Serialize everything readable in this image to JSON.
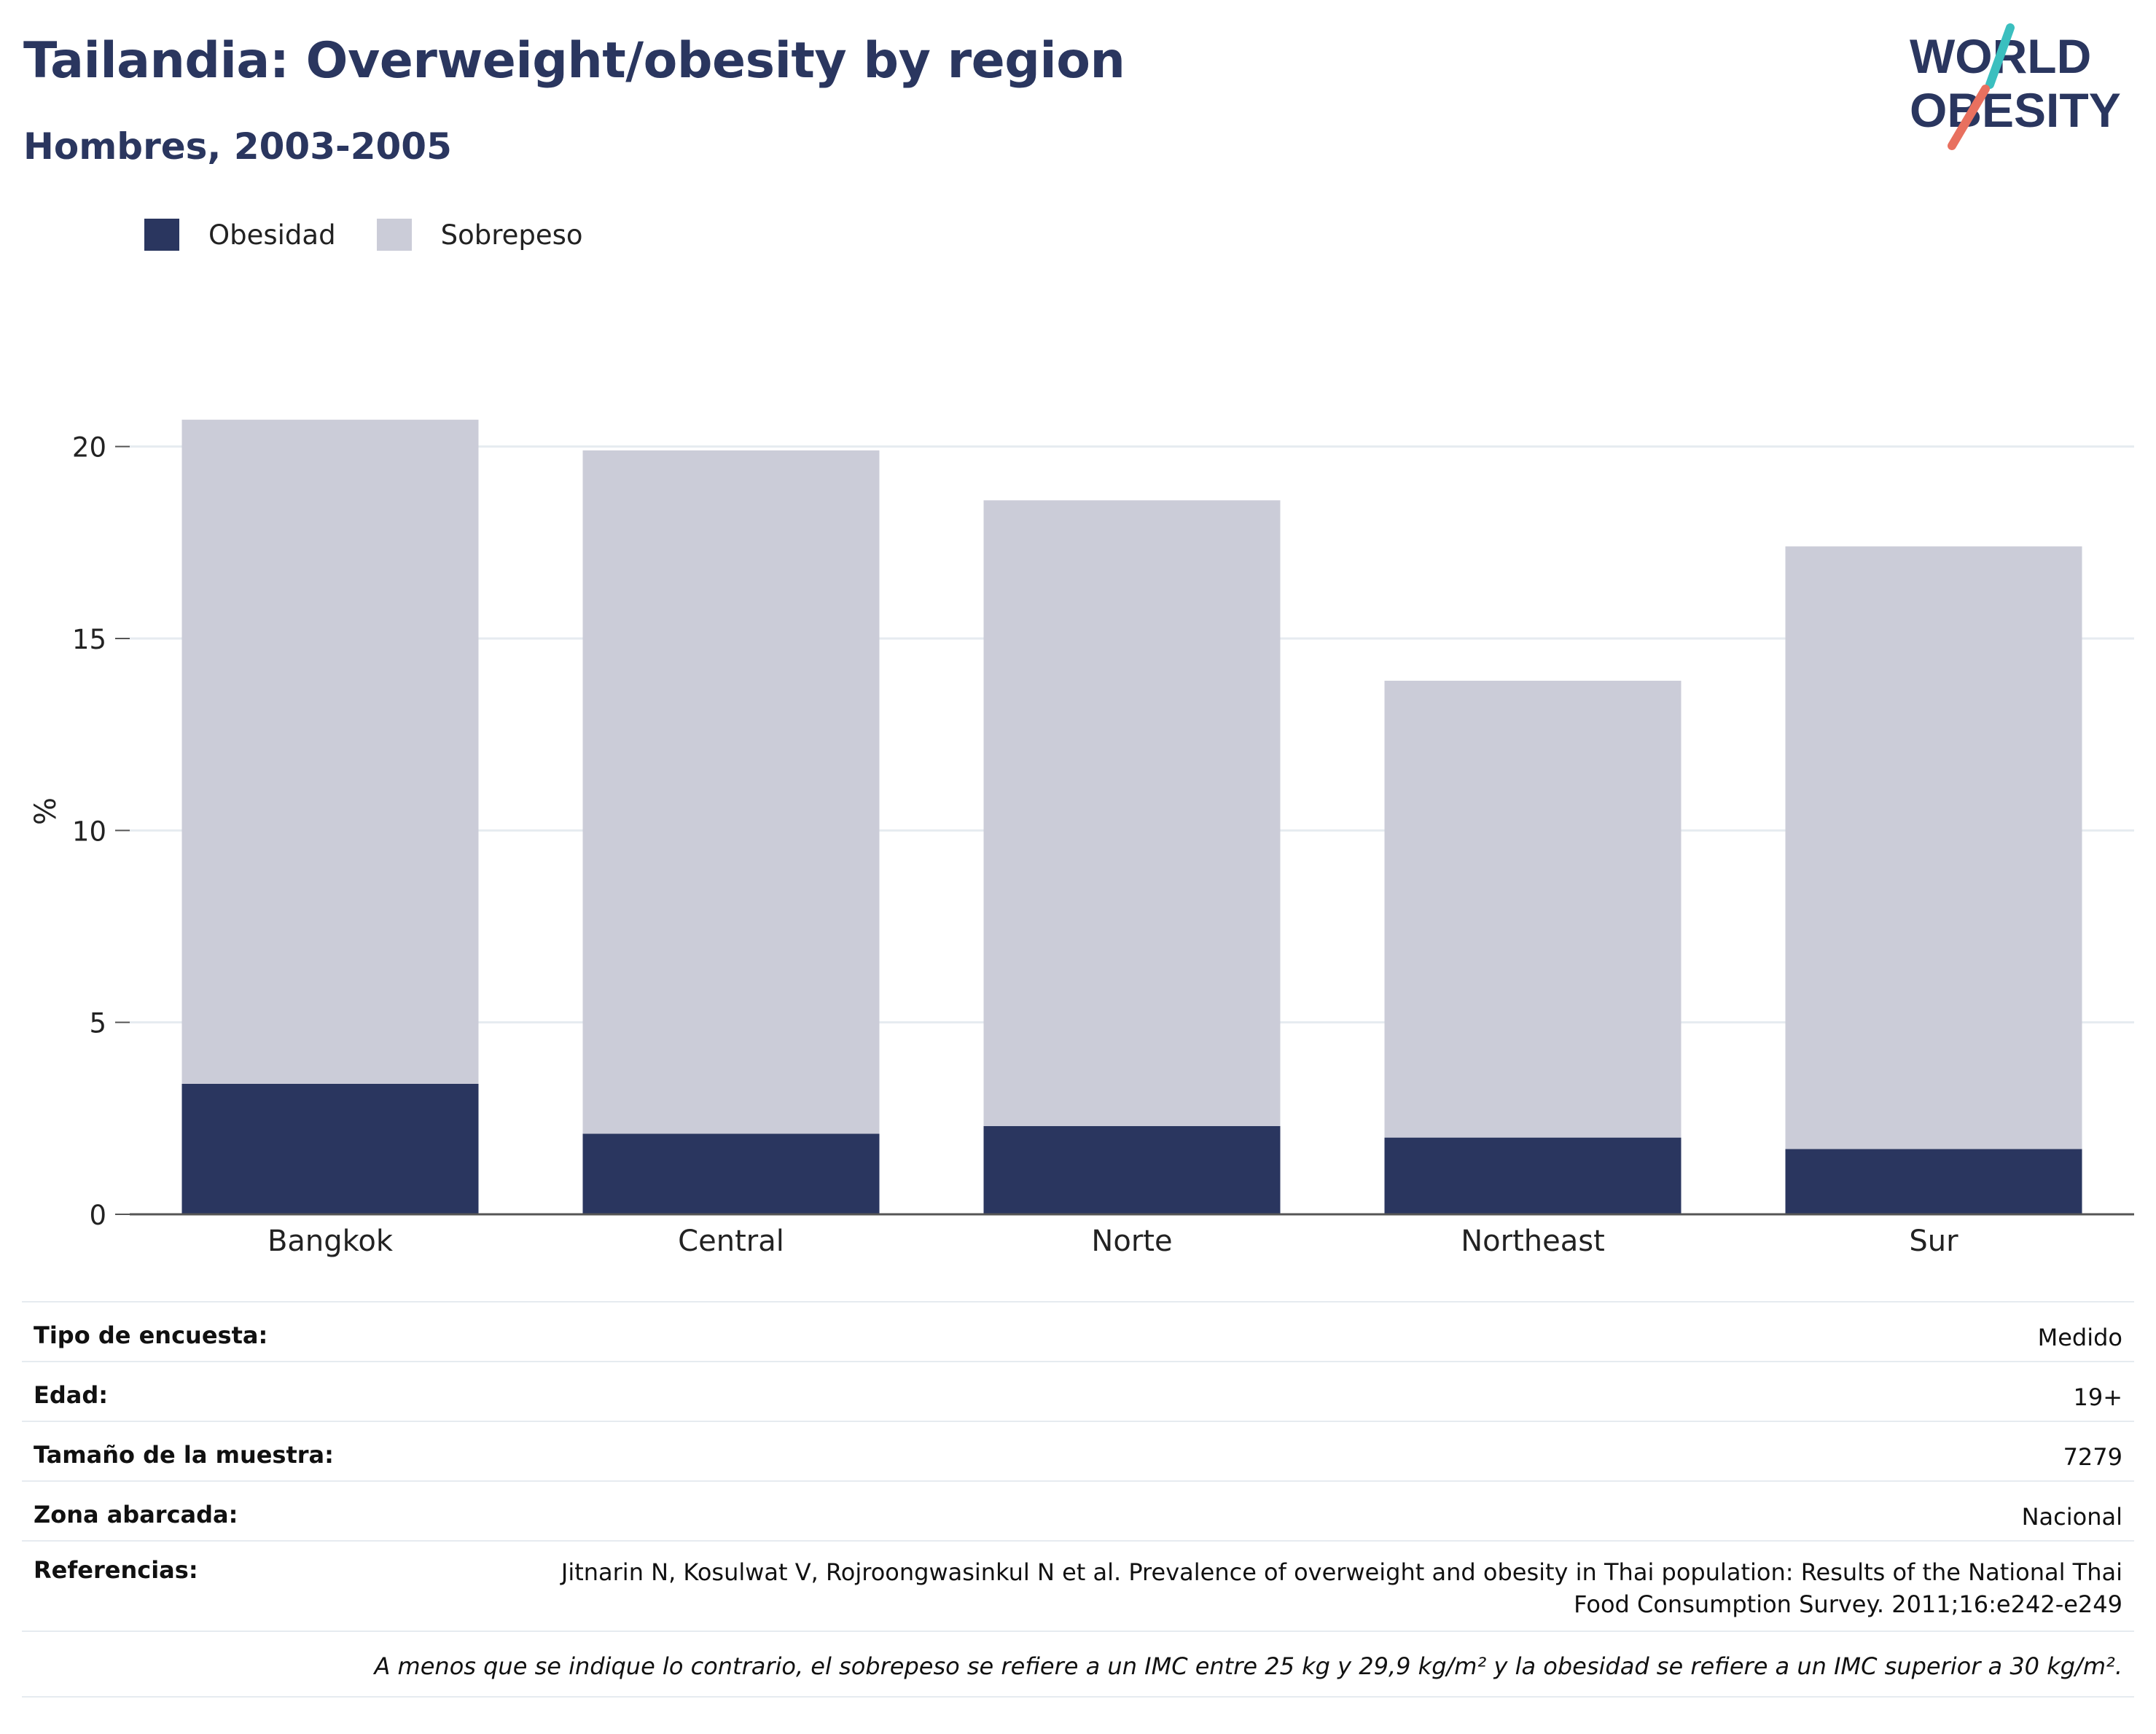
{
  "header": {
    "title": "Tailandia: Overweight/obesity by region",
    "subtitle": "Hombres, 2003-2005"
  },
  "logo": {
    "line1": "WORLD",
    "line2": "OBESITY"
  },
  "colors": {
    "obesity": "#2a365f",
    "overweight": "#cbccd8",
    "title": "#2a365f",
    "logo_teal": "#3bbfbf",
    "logo_coral": "#e8705f",
    "grid": "#e6ebf0",
    "axis": "#555555"
  },
  "legend": {
    "items": [
      {
        "label": "Obesidad",
        "color": "#2a365f"
      },
      {
        "label": "Sobrepeso",
        "color": "#cbccd8"
      }
    ]
  },
  "chart_data": {
    "type": "bar",
    "stacked": true,
    "categories": [
      "Bangkok",
      "Central",
      "Norte",
      "Northeast",
      "Sur"
    ],
    "series": [
      {
        "name": "Obesidad",
        "values": [
          3.4,
          2.1,
          2.3,
          2.0,
          1.7
        ]
      },
      {
        "name": "Sobrepeso",
        "values": [
          17.3,
          17.8,
          16.3,
          11.9,
          15.7
        ]
      }
    ],
    "totals": [
      20.7,
      19.9,
      18.6,
      13.9,
      17.4
    ],
    "ylabel": "%",
    "xlabel": "",
    "ylim": [
      0,
      21
    ],
    "yticks": [
      0,
      5,
      10,
      15,
      20
    ],
    "grid": true,
    "legend_position": "top-left"
  },
  "info": {
    "rows": [
      {
        "label": "Tipo de encuesta:",
        "value": "Medido"
      },
      {
        "label": "Edad:",
        "value": "19+"
      },
      {
        "label": "Tamaño de la muestra:",
        "value": "7279"
      },
      {
        "label": "Zona abarcada:",
        "value": "Nacional"
      }
    ],
    "references_label": "Referencias:",
    "references_line1": "Jitnarin N, Kosulwat V, Rojroongwasinkul N et al. Prevalence of overweight and obesity in Thai population: Results of the National Thai",
    "references_line2": "Food Consumption Survey. 2011;16:e242-e249",
    "note": "A menos que se indique lo contrario, el sobrepeso se refiere a un IMC entre 25 kg y 29,9 kg/m² y la obesidad se refiere a un IMC superior a 30 kg/m²."
  }
}
